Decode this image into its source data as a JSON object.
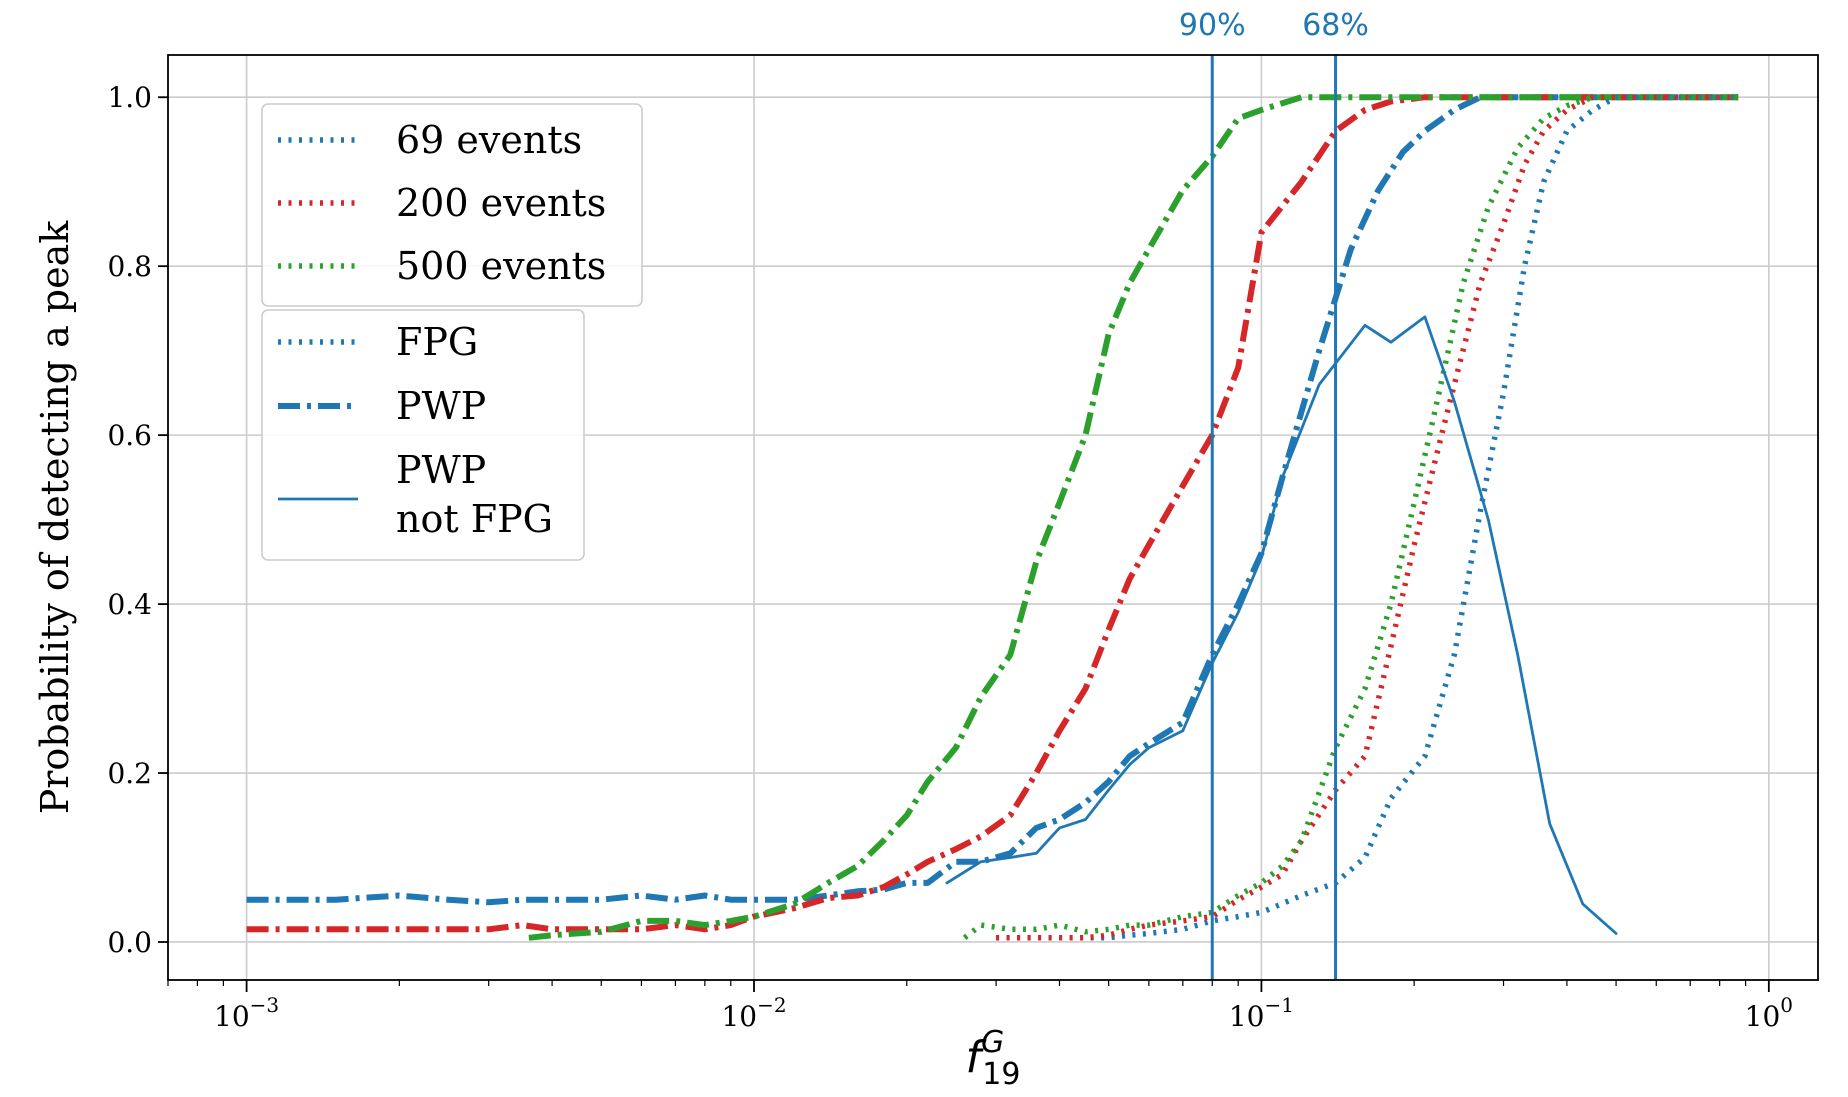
{
  "chart_data": {
    "type": "line",
    "xscale": "log",
    "xlim": [
      0.0007,
      1.25
    ],
    "ylim": [
      -0.045,
      1.05
    ],
    "ylabel": "Probability of detecting a peak",
    "xlabel": {
      "base": "f",
      "sub": "19",
      "sup": "G"
    },
    "grid": true,
    "y_ticks": [
      {
        "value": 0.0,
        "label": "0.0"
      },
      {
        "value": 0.2,
        "label": "0.2"
      },
      {
        "value": 0.4,
        "label": "0.4"
      },
      {
        "value": 0.6,
        "label": "0.6"
      },
      {
        "value": 0.8,
        "label": "0.8"
      },
      {
        "value": 1.0,
        "label": "1.0"
      }
    ],
    "x_ticks": [
      {
        "value": 0.001,
        "base": "10",
        "exp": "−3"
      },
      {
        "value": 0.01,
        "base": "10",
        "exp": "−2"
      },
      {
        "value": 0.1,
        "base": "10",
        "exp": "−1"
      },
      {
        "value": 1.0,
        "base": "10",
        "exp": "0"
      }
    ],
    "vlines": [
      {
        "x": 0.08,
        "label": "90%",
        "color": "#1f77b4"
      },
      {
        "x": 0.14,
        "label": "68%",
        "color": "#1f77b4"
      }
    ],
    "colors": {
      "69 events": "#1f77b4",
      "200 events": "#d62728",
      "500 events": "#2ca02c"
    },
    "legend_events": {
      "position": "upper-left",
      "entries": [
        {
          "label": "69 events",
          "color": "#1f77b4"
        },
        {
          "label": "200 events",
          "color": "#d62728"
        },
        {
          "label": "500 events",
          "color": "#2ca02c"
        }
      ]
    },
    "legend_methods": {
      "position": "upper-left",
      "entries": [
        {
          "label": "FPG",
          "style": "dotted"
        },
        {
          "label": "PWP",
          "style": "dashdot"
        },
        {
          "label_lines": [
            "PWP",
            "not FPG"
          ],
          "style": "solid"
        }
      ]
    },
    "series": [
      {
        "name": "69 events PWP",
        "events": 69,
        "method": "PWP",
        "style": "dashdot",
        "color": "#1f77b4",
        "x": [
          0.001,
          0.0015,
          0.002,
          0.0025,
          0.003,
          0.0035,
          0.004,
          0.005,
          0.006,
          0.007,
          0.008,
          0.009,
          0.01,
          0.012,
          0.014,
          0.016,
          0.018,
          0.02,
          0.022,
          0.025,
          0.028,
          0.032,
          0.036,
          0.04,
          0.045,
          0.05,
          0.055,
          0.06,
          0.07,
          0.08,
          0.09,
          0.1,
          0.11,
          0.13,
          0.15,
          0.17,
          0.19,
          0.21,
          0.24,
          0.27,
          0.3,
          0.35,
          0.4,
          0.5,
          0.6,
          0.7,
          0.87
        ],
        "y": [
          0.05,
          0.05,
          0.055,
          0.05,
          0.047,
          0.05,
          0.05,
          0.05,
          0.055,
          0.05,
          0.055,
          0.05,
          0.05,
          0.05,
          0.055,
          0.06,
          0.062,
          0.07,
          0.07,
          0.095,
          0.095,
          0.105,
          0.135,
          0.145,
          0.165,
          0.19,
          0.22,
          0.235,
          0.26,
          0.34,
          0.4,
          0.46,
          0.55,
          0.7,
          0.82,
          0.89,
          0.935,
          0.96,
          0.985,
          1.0,
          1.0,
          1.0,
          1.0,
          1.0,
          1.0,
          1.0,
          1.0
        ]
      },
      {
        "name": "200 events PWP",
        "events": 200,
        "method": "PWP",
        "style": "dashdot",
        "color": "#d62728",
        "x": [
          0.001,
          0.0015,
          0.002,
          0.0025,
          0.003,
          0.0035,
          0.004,
          0.005,
          0.006,
          0.007,
          0.008,
          0.009,
          0.01,
          0.012,
          0.014,
          0.016,
          0.018,
          0.02,
          0.022,
          0.025,
          0.028,
          0.032,
          0.036,
          0.04,
          0.045,
          0.05,
          0.055,
          0.06,
          0.07,
          0.08,
          0.09,
          0.1,
          0.12,
          0.14,
          0.16,
          0.18,
          0.21,
          0.25,
          0.3,
          0.4,
          0.5,
          0.6,
          0.7,
          0.87
        ],
        "y": [
          0.015,
          0.015,
          0.015,
          0.015,
          0.015,
          0.02,
          0.015,
          0.015,
          0.015,
          0.02,
          0.015,
          0.02,
          0.03,
          0.04,
          0.052,
          0.055,
          0.065,
          0.08,
          0.095,
          0.11,
          0.125,
          0.15,
          0.2,
          0.25,
          0.3,
          0.37,
          0.43,
          0.47,
          0.54,
          0.6,
          0.68,
          0.84,
          0.9,
          0.96,
          0.985,
          0.995,
          1.0,
          1.0,
          1.0,
          1.0,
          1.0,
          1.0,
          1.0,
          1.0
        ]
      },
      {
        "name": "500 events PWP",
        "events": 500,
        "method": "PWP",
        "style": "dashdot",
        "color": "#2ca02c",
        "x": [
          0.0036,
          0.004,
          0.005,
          0.006,
          0.007,
          0.008,
          0.009,
          0.01,
          0.012,
          0.014,
          0.016,
          0.018,
          0.02,
          0.022,
          0.025,
          0.028,
          0.032,
          0.036,
          0.04,
          0.045,
          0.05,
          0.055,
          0.06,
          0.07,
          0.08,
          0.09,
          0.1,
          0.12,
          0.15,
          0.2,
          0.3,
          0.4,
          0.5,
          0.6,
          0.7,
          0.87
        ],
        "y": [
          0.005,
          0.008,
          0.012,
          0.025,
          0.025,
          0.02,
          0.025,
          0.03,
          0.045,
          0.07,
          0.09,
          0.12,
          0.15,
          0.19,
          0.23,
          0.29,
          0.34,
          0.45,
          0.52,
          0.6,
          0.72,
          0.78,
          0.82,
          0.89,
          0.93,
          0.975,
          0.985,
          1.0,
          1.0,
          1.0,
          1.0,
          1.0,
          1.0,
          1.0,
          1.0,
          1.0
        ]
      },
      {
        "name": "69 events FPG",
        "events": 69,
        "method": "FPG",
        "style": "dotted",
        "color": "#1f77b4",
        "x": [
          0.03,
          0.035,
          0.04,
          0.045,
          0.05,
          0.055,
          0.06,
          0.07,
          0.08,
          0.09,
          0.1,
          0.12,
          0.14,
          0.16,
          0.18,
          0.21,
          0.24,
          0.27,
          0.3,
          0.33,
          0.36,
          0.4,
          0.45,
          0.5,
          0.6,
          0.7,
          0.87
        ],
        "y": [
          0.005,
          0.005,
          0.005,
          0.005,
          0.005,
          0.008,
          0.01,
          0.015,
          0.025,
          0.03,
          0.035,
          0.055,
          0.07,
          0.1,
          0.17,
          0.22,
          0.34,
          0.51,
          0.65,
          0.8,
          0.9,
          0.96,
          0.985,
          1.0,
          1.0,
          1.0,
          1.0
        ]
      },
      {
        "name": "200 events FPG",
        "events": 200,
        "method": "FPG",
        "style": "dotted",
        "color": "#d62728",
        "x": [
          0.03,
          0.035,
          0.04,
          0.045,
          0.05,
          0.055,
          0.06,
          0.07,
          0.08,
          0.09,
          0.1,
          0.11,
          0.12,
          0.14,
          0.16,
          0.18,
          0.2,
          0.22,
          0.24,
          0.27,
          0.3,
          0.33,
          0.36,
          0.4,
          0.45,
          0.5,
          0.6,
          0.7,
          0.87
        ],
        "y": [
          0.005,
          0.005,
          0.005,
          0.005,
          0.008,
          0.015,
          0.02,
          0.025,
          0.03,
          0.05,
          0.065,
          0.08,
          0.12,
          0.18,
          0.22,
          0.35,
          0.47,
          0.57,
          0.66,
          0.78,
          0.85,
          0.92,
          0.96,
          0.985,
          1.0,
          1.0,
          1.0,
          1.0,
          1.0
        ]
      },
      {
        "name": "500 events FPG",
        "events": 500,
        "method": "FPG",
        "style": "dotted",
        "color": "#2ca02c",
        "x": [
          0.026,
          0.028,
          0.032,
          0.036,
          0.04,
          0.045,
          0.05,
          0.055,
          0.06,
          0.07,
          0.08,
          0.09,
          0.1,
          0.11,
          0.12,
          0.14,
          0.16,
          0.18,
          0.2,
          0.22,
          0.25,
          0.28,
          0.32,
          0.36,
          0.4,
          0.45,
          0.5,
          0.6,
          0.7,
          0.87
        ],
        "y": [
          0.005,
          0.02,
          0.015,
          0.015,
          0.02,
          0.012,
          0.015,
          0.02,
          0.02,
          0.03,
          0.035,
          0.055,
          0.07,
          0.09,
          0.12,
          0.23,
          0.3,
          0.4,
          0.52,
          0.63,
          0.78,
          0.87,
          0.94,
          0.975,
          0.99,
          1.0,
          1.0,
          1.0,
          1.0,
          1.0
        ]
      },
      {
        "name": "PWP not FPG",
        "events": 69,
        "method": "PWP not FPG",
        "style": "solid",
        "color": "#1f77b4",
        "x": [
          0.024,
          0.028,
          0.032,
          0.036,
          0.04,
          0.045,
          0.05,
          0.055,
          0.06,
          0.07,
          0.08,
          0.09,
          0.1,
          0.11,
          0.13,
          0.16,
          0.18,
          0.21,
          0.24,
          0.28,
          0.32,
          0.37,
          0.43,
          0.5
        ],
        "y": [
          0.07,
          0.095,
          0.1,
          0.105,
          0.135,
          0.145,
          0.18,
          0.21,
          0.23,
          0.25,
          0.33,
          0.39,
          0.455,
          0.55,
          0.66,
          0.73,
          0.71,
          0.74,
          0.64,
          0.5,
          0.34,
          0.14,
          0.045,
          0.01
        ]
      }
    ]
  }
}
